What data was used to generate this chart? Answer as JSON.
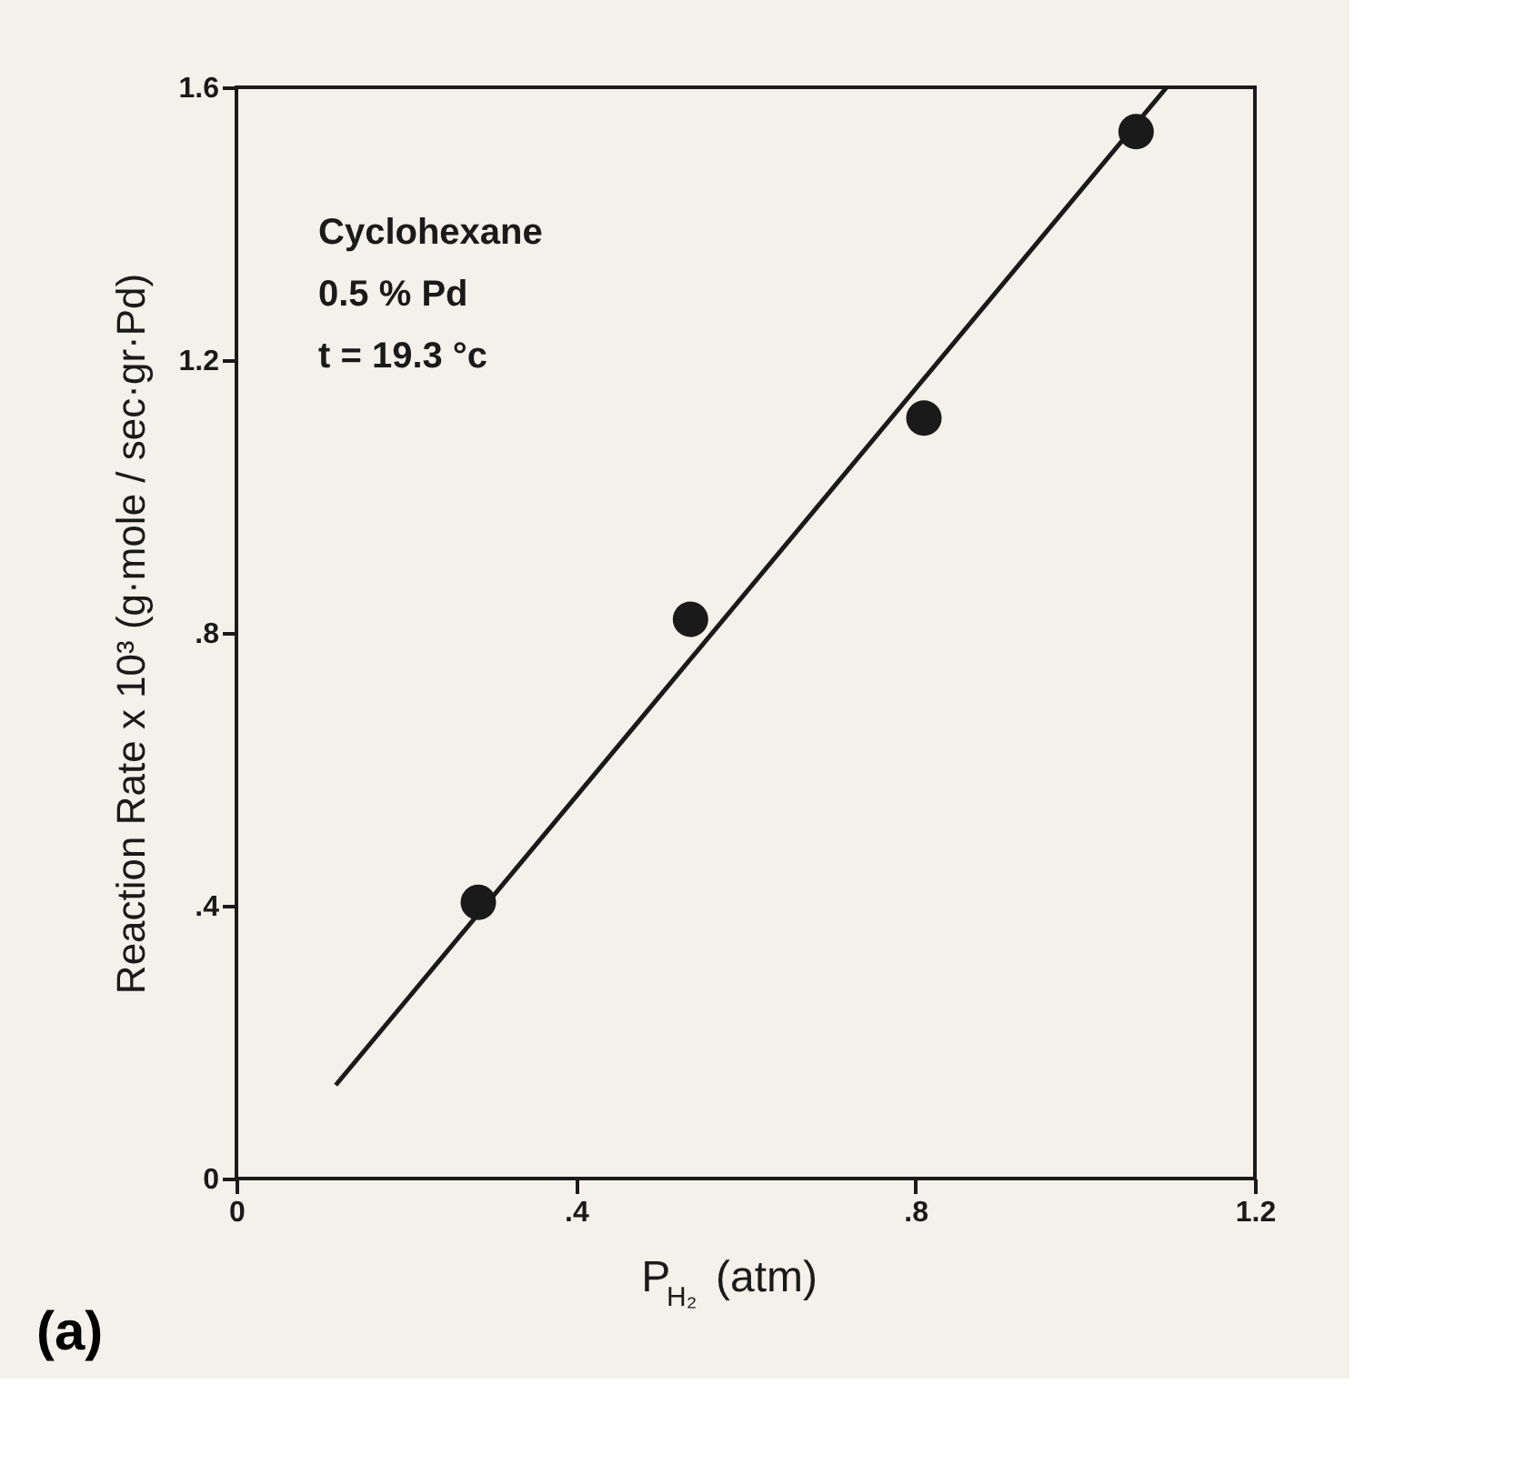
{
  "chart_data": {
    "type": "scatter",
    "xlabel": "P$_{H₂}$ (atm)",
    "ylabel": "Reaction Rate x 10³ (g·mole / sec·gr·Pd)",
    "annotations": [
      "Cyclohexane",
      "0.5 % Pd",
      "t = 19.3 °c",
      "(a)"
    ],
    "xlim": [
      0,
      1.2
    ],
    "ylim": [
      0,
      1.6
    ],
    "xticks": [
      0,
      {
        "value": 0.4,
        "label": ".4"
      },
      {
        "value": 0.8,
        "label": ".8"
      },
      1.2
    ],
    "yticks": [
      0,
      {
        "value": 0.4,
        "label": ".4"
      },
      {
        "value": 0.8,
        "label": ".8"
      },
      1.2,
      1.6
    ],
    "grid": false,
    "series": [
      {
        "color": "#1a1a1a",
        "marker": "circle",
        "x": [
          0.285,
          0.535,
          0.81,
          1.06
        ],
        "values": [
          0.405,
          0.82,
          1.115,
          1.535
        ]
      },
      {
        "type": "line",
        "color": "#1a1a1a",
        "marker": "none",
        "line_style": "solid",
        "x": [
          0.117,
          1.096
        ],
        "values": [
          0.137,
          1.6
        ]
      }
    ]
  }
}
